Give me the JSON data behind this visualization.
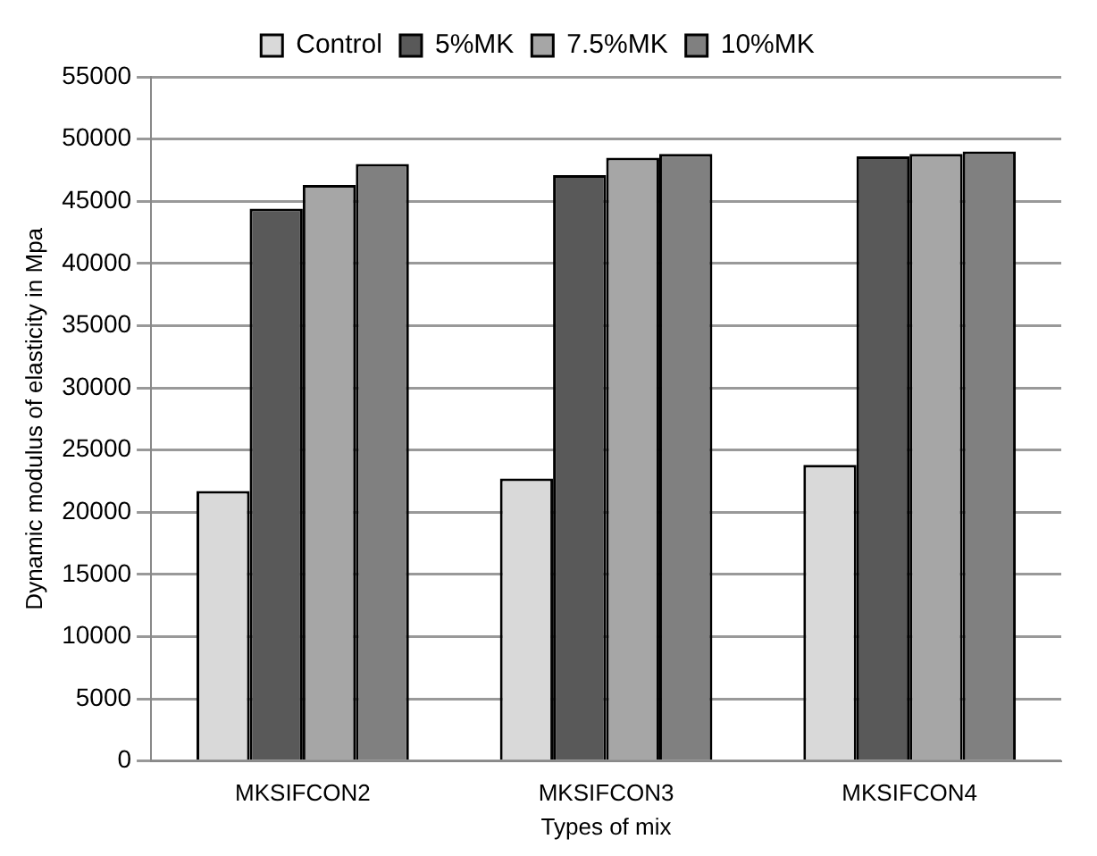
{
  "chart_data": {
    "type": "bar",
    "xlabel": "Types of mix",
    "ylabel": "Dynamic modulus of elasticity in Mpa",
    "categories": [
      "MKSIFCON2",
      "MKSIFCON3",
      "MKSIFCON4"
    ],
    "series": [
      {
        "name": "Control",
        "color": "#d9d9d9",
        "values": [
          21700,
          22700,
          23800
        ]
      },
      {
        "name": "5%MK",
        "color": "#595959",
        "values": [
          44400,
          47100,
          48600
        ]
      },
      {
        "name": "7.5%MK",
        "color": "#a6a6a6",
        "values": [
          46300,
          48500,
          48800
        ]
      },
      {
        "name": "10%MK",
        "color": "#808080",
        "values": [
          48000,
          48800,
          49000
        ]
      }
    ],
    "ylim": [
      0,
      55000
    ],
    "yticks": [
      0,
      5000,
      10000,
      15000,
      20000,
      25000,
      30000,
      35000,
      40000,
      45000,
      50000,
      55000
    ],
    "grid": "y",
    "legend": "top"
  }
}
